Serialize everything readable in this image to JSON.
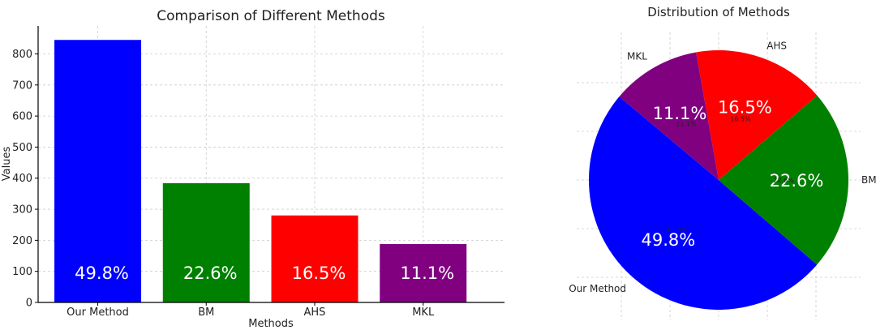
{
  "chart_data": [
    {
      "type": "bar",
      "title": "Comparison of Different Methods",
      "xlabel": "Methods",
      "ylabel": "Values",
      "categories": [
        "Our Method",
        "BM",
        "AHS",
        "MKL"
      ],
      "values": [
        845,
        384,
        280,
        188
      ],
      "bar_labels": [
        "49.8%",
        "22.6%",
        "16.5%",
        "11.1%"
      ],
      "colors": [
        "#0000ff",
        "#008000",
        "#ff0000",
        "#800080"
      ],
      "ylim": [
        0,
        890
      ],
      "yticks": [
        0,
        100,
        200,
        300,
        400,
        500,
        600,
        700,
        800
      ],
      "grid": true
    },
    {
      "type": "pie",
      "title": "Distribution of Methods",
      "labels": [
        "Our Method",
        "BM",
        "AHS",
        "MKL"
      ],
      "values": [
        49.8,
        22.6,
        16.5,
        11.1
      ],
      "pct_labels": [
        "49.8%",
        "22.6%",
        "16.5%",
        "11.1%"
      ],
      "colors": [
        "#0000ff",
        "#008000",
        "#ff0000",
        "#800080"
      ],
      "start_angle": 140,
      "grid": true
    }
  ]
}
